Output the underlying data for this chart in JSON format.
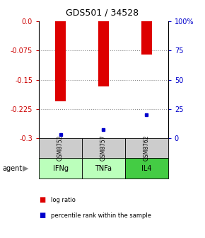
{
  "title": "GDS501 / 34528",
  "samples": [
    "GSM8752",
    "GSM8757",
    "GSM8762"
  ],
  "agents": [
    "IFNg",
    "TNFa",
    "IL4"
  ],
  "log_ratios": [
    -0.205,
    -0.168,
    -0.085
  ],
  "percentile_ranks": [
    3.0,
    7.0,
    20.0
  ],
  "ylim_left": [
    -0.3,
    0.0
  ],
  "ylim_right": [
    0.0,
    100.0
  ],
  "left_ticks": [
    0.0,
    -0.075,
    -0.15,
    -0.225,
    -0.3
  ],
  "right_ticks": [
    100,
    75,
    50,
    25,
    0
  ],
  "bar_color": "#dd0000",
  "dot_color": "#0000cc",
  "agent_colors": [
    "#bbffbb",
    "#bbffbb",
    "#44cc44"
  ],
  "sample_bg": "#cccccc",
  "left_tick_color": "#cc0000",
  "right_tick_color": "#0000cc"
}
